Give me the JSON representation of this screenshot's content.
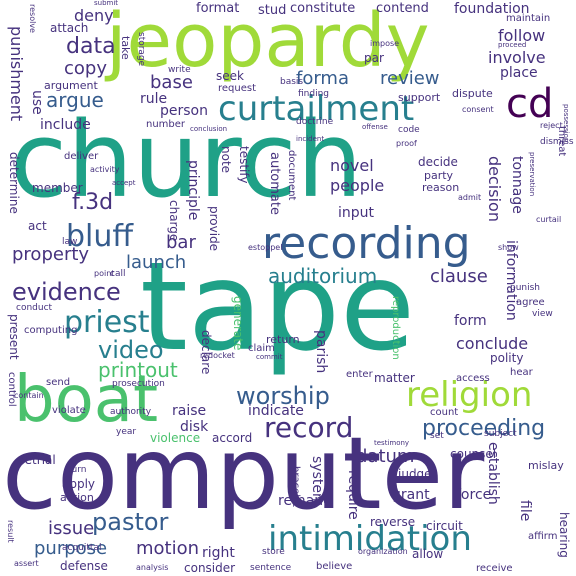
{
  "colors": {
    "dark_purple": "#46327e",
    "blue": "#365c8d",
    "dark_teal": "#277f8e",
    "teal": "#1fa187",
    "green": "#4ac16d",
    "lime": "#a0da39",
    "yellow": "#fde725",
    "indigo": "#440154"
  },
  "words": {
    "church": "church",
    "tape": "tape",
    "computer": "computer",
    "jeopardy": "jeopardy",
    "boat": "boat",
    "recording": "recording",
    "curtailment": "curtailment",
    "cd": "cd",
    "intimidation": "intimidation",
    "religion": "religion",
    "priest": "priest",
    "evidence": "evidence",
    "bluff": "bluff",
    "record": "record",
    "worship": "worship",
    "auditorium": "auditorium",
    "video": "video",
    "pastor": "pastor",
    "printout": "printout",
    "data": "data",
    "proceeding": "proceeding",
    "f3d": "f.3d",
    "argue": "argue",
    "launch": "launch",
    "property": "property",
    "motion": "motion",
    "purpose": "purpose",
    "review": "review",
    "forma": "forma",
    "copy": "copy",
    "base": "base",
    "clause": "clause",
    "conclude": "conclude",
    "issue": "issue",
    "deny": "deny",
    "format": "format",
    "stud": "stud",
    "constitute": "constitute",
    "contend": "contend",
    "foundation": "foundation",
    "follow": "follow",
    "involve": "involve",
    "place": "place",
    "punishment": "punishment",
    "information": "information",
    "tonnage": "tonnage",
    "decision": "decision",
    "use": "use",
    "include": "include",
    "seek": "seek",
    "rule": "rule",
    "person": "person",
    "novel": "novel",
    "people": "people",
    "input": "input",
    "bar": "bar",
    "datum": "datum",
    "indicate": "indicate",
    "raise": "raise",
    "disk": "disk",
    "right": "right",
    "remand": "remand",
    "system": "system",
    "require": "require",
    "reverse": "reverse",
    "circuit": "circuit",
    "grant": "grant",
    "force": "force",
    "judge": "judge",
    "establish": "establish",
    "file": "file",
    "form": "form",
    "polity": "polity",
    "matter": "matter",
    "declare": "declare",
    "parish": "parish",
    "generate": "generate",
    "provide": "provide",
    "principle": "principle",
    "charge": "charge",
    "note": "note",
    "testify": "testify",
    "automate": "automate",
    "document": "document",
    "member": "member",
    "determine": "determine",
    "act": "act",
    "present": "present",
    "counsel": "counsel",
    "apply": "apply",
    "action": "action",
    "defense": "defense",
    "consider": "consider",
    "retrial": "retrial",
    "accord": "accord",
    "violence": "violence",
    "hearing": "hearing",
    "maintain": "maintain",
    "dispute": "dispute",
    "support": "support",
    "decide": "decide",
    "party": "party",
    "reason": "reason",
    "attach": "attach",
    "argument": "argument",
    "write": "write",
    "storage": "storage",
    "take": "take",
    "request": "request",
    "finding": "finding",
    "number": "number",
    "doctrine": "doctrine",
    "deliver": "deliver",
    "return": "return",
    "claim": "claim",
    "reproduction": "reproduction",
    "enter": "enter",
    "access": "access",
    "hear": "hear",
    "count": "count",
    "subject": "subject",
    "mislay": "mislay",
    "affirm": "affirm",
    "allow": "allow",
    "receive": "receive",
    "believe": "believe",
    "sentence": "sentence",
    "store": "store",
    "bracelet": "bracelet",
    "acquittal": "acquittal",
    "result": "result",
    "assert": "assert",
    "turn": "turn",
    "control": "control",
    "violate": "violate",
    "authority": "authority",
    "year": "year",
    "contain": "contain",
    "send": "send",
    "prosecution": "prosecution",
    "computing": "computing",
    "conduct": "conduct",
    "law": "law",
    "call": "call",
    "point": "point",
    "punish": "punish",
    "agree": "agree",
    "view": "view",
    "dismiss": "dismiss",
    "threat": "threat",
    "reject": "reject",
    "curtail": "curtail",
    "show": "show",
    "admit": "admit",
    "consent": "consent",
    "code": "code",
    "proof": "proof",
    "incident": "incident",
    "activity": "activity",
    "accept": "accept",
    "par": "par",
    "impose": "impose",
    "basis": "basis",
    "proceed": "proceed",
    "resolve": "resolve",
    "submit": "submit",
    "redocket": "redocket",
    "commit": "commit",
    "conclusion": "conclusion",
    "possession": "possession",
    "preservation": "preservation",
    "estoppel": "estoppel",
    "organization": "organization",
    "analysis": "analysis",
    "set": "set",
    "testimony": "testimony",
    "offense": "offense"
  }
}
